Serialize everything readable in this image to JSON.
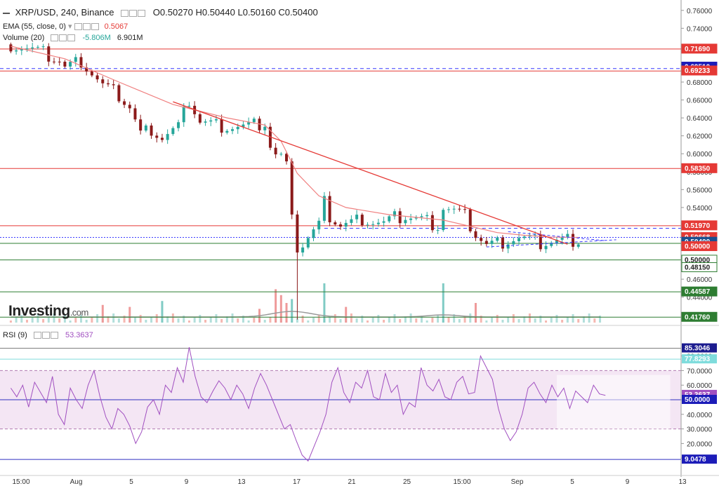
{
  "header": {
    "symbol": "XRP/USD, 240, Binance",
    "ohlc": "O0.50270  H0.50440  L0.50160  C0.50400",
    "ema_label": "EMA (55, close, 0)",
    "ema_value": "0.5067",
    "volume_label": "Volume (20)",
    "volume_value1": "-5.806M",
    "volume_value2": "6.901M",
    "rsi_label": "RSI (9)",
    "rsi_value": "53.3637",
    "watermark": "Investing",
    "watermark_suffix": ".com"
  },
  "colors": {
    "up": "#26a69a",
    "down": "#8b1a1a",
    "ema": "#f08080",
    "resistance": "#e53935",
    "support": "#2e7d32",
    "dashed": "#3a3aff",
    "rsi": "#a04fc0",
    "rsi_band": "#f4e6f4"
  },
  "chart_data": [
    {
      "type": "candlestick",
      "title": "XRP/USD, 240, Binance",
      "ylim": [
        0.41,
        0.77
      ],
      "y_ticks": [
        "0.76000",
        "0.74000",
        "0.72000",
        "0.70000",
        "0.68000",
        "0.66000",
        "0.64000",
        "0.62000",
        "0.60000",
        "0.58000",
        "0.56000",
        "0.54000",
        "0.52000",
        "0.50000",
        "0.48000",
        "0.46000",
        "0.44000",
        "0.42000"
      ],
      "x_ticks": [
        "15:00",
        "Aug",
        "5",
        "9",
        "13",
        "17",
        "21",
        "25",
        "15:00",
        "Sep",
        "5",
        "9",
        "13"
      ],
      "price_labels": [
        {
          "value": "0.71690",
          "kind": "resistance"
        },
        {
          "value": "0.69510",
          "kind": "dashed"
        },
        {
          "value": "0.69233",
          "kind": "resistance"
        },
        {
          "value": "0.58350",
          "kind": "resistance"
        },
        {
          "value": "0.51970",
          "kind": "resistance"
        },
        {
          "value": "0.50668",
          "kind": "ema"
        },
        {
          "value": "0.50400",
          "kind": "current"
        },
        {
          "value": "0.50000",
          "kind": "resistance"
        },
        {
          "value": "0.50000",
          "kind": "support"
        },
        {
          "value": "0.48150",
          "kind": "support"
        },
        {
          "value": "0.44587",
          "kind": "support"
        },
        {
          "value": "0.41760",
          "kind": "support"
        }
      ],
      "horizontal_levels": [
        0.7169,
        0.6951,
        0.69233,
        0.5835,
        0.5197,
        0.5067,
        0.504,
        0.5,
        0.4815,
        0.44587,
        0.4176
      ],
      "close_path": [
        [
          0,
          0.722
        ],
        [
          4,
          0.716
        ],
        [
          6,
          0.712
        ],
        [
          9,
          0.704
        ],
        [
          10,
          0.696
        ],
        [
          13,
          0.704
        ],
        [
          15,
          0.69
        ],
        [
          17,
          0.676
        ],
        [
          20,
          0.665
        ],
        [
          22,
          0.652
        ],
        [
          24,
          0.622
        ],
        [
          26,
          0.628
        ],
        [
          28,
          0.618
        ],
        [
          31,
          0.63
        ],
        [
          33,
          0.66
        ],
        [
          35,
          0.636
        ],
        [
          38,
          0.632
        ],
        [
          41,
          0.63
        ],
        [
          44,
          0.63
        ],
        [
          47,
          0.634
        ],
        [
          48,
          0.608
        ],
        [
          49,
          0.598
        ],
        [
          50,
          0.596
        ],
        [
          51,
          0.585
        ],
        [
          52,
          0.54
        ],
        [
          53,
          0.495
        ],
        [
          54,
          0.498
        ],
        [
          55,
          0.506
        ],
        [
          57,
          0.52
        ],
        [
          58,
          0.545
        ],
        [
          59,
          0.53
        ],
        [
          61,
          0.52
        ],
        [
          63,
          0.523
        ],
        [
          65,
          0.528
        ],
        [
          67,
          0.524
        ],
        [
          69,
          0.522
        ],
        [
          71,
          0.528
        ],
        [
          73,
          0.53
        ],
        [
          75,
          0.528
        ],
        [
          77,
          0.525
        ],
        [
          79,
          0.52
        ],
        [
          80,
          0.54
        ],
        [
          82,
          0.536
        ],
        [
          84,
          0.53
        ],
        [
          86,
          0.51
        ],
        [
          88,
          0.498
        ],
        [
          90,
          0.5
        ],
        [
          92,
          0.504
        ],
        [
          94,
          0.506
        ],
        [
          96,
          0.504
        ],
        [
          98,
          0.5
        ],
        [
          100,
          0.502
        ],
        [
          103,
          0.504
        ],
        [
          105,
          0.504
        ]
      ],
      "ema_path": [
        [
          0,
          0.72
        ],
        [
          10,
          0.706
        ],
        [
          20,
          0.68
        ],
        [
          30,
          0.655
        ],
        [
          40,
          0.64
        ],
        [
          47,
          0.632
        ],
        [
          50,
          0.614
        ],
        [
          53,
          0.578
        ],
        [
          57,
          0.553
        ],
        [
          62,
          0.54
        ],
        [
          70,
          0.532
        ],
        [
          80,
          0.526
        ],
        [
          90,
          0.512
        ],
        [
          95,
          0.509
        ],
        [
          100,
          0.507
        ],
        [
          105,
          0.5067
        ]
      ],
      "trendline": [
        [
          30,
          0.658
        ],
        [
          103,
          0.499
        ]
      ],
      "triangle_upper": [
        [
          92,
          0.513
        ],
        [
          110,
          0.503
        ]
      ],
      "triangle_lower": [
        [
          88,
          0.496
        ],
        [
          112,
          0.504
        ]
      ],
      "volume": {
        "spikes": [
          {
            "x": 49,
            "h": 0.85,
            "dir": "down"
          },
          {
            "x": 50,
            "h": 0.7,
            "dir": "down"
          },
          {
            "x": 51,
            "h": 0.5,
            "dir": "down"
          },
          {
            "x": 52,
            "h": 0.6,
            "dir": "up"
          },
          {
            "x": 58,
            "h": 1.0,
            "dir": "up"
          },
          {
            "x": 80,
            "h": 1.0,
            "dir": "up"
          },
          {
            "x": 86,
            "h": 0.5,
            "dir": "down"
          },
          {
            "x": 28,
            "h": 0.55,
            "dir": "up"
          },
          {
            "x": 22,
            "h": 0.4,
            "dir": "down"
          },
          {
            "x": 17,
            "h": 0.45,
            "dir": "down"
          },
          {
            "x": 62,
            "h": 0.4,
            "dir": "down"
          },
          {
            "x": 46,
            "h": 0.35,
            "dir": "down"
          }
        ]
      }
    },
    {
      "type": "line",
      "title": "RSI (9)",
      "ylim": [
        0,
        100
      ],
      "y_ticks": [
        "80.0000",
        "70.0000",
        "60.0000",
        "50.0000",
        "40.0000",
        "30.0000",
        "20.0000",
        "10.0000"
      ],
      "levels": [
        {
          "value": "85.3046",
          "kind": "dark"
        },
        {
          "value": "77.8293",
          "kind": "cyan"
        },
        {
          "value": "53.3637",
          "kind": "rsi"
        },
        {
          "value": "50.0000",
          "kind": "mid"
        },
        {
          "value": "9.0478",
          "kind": "low"
        }
      ],
      "band": [
        30,
        70
      ],
      "values": [
        58,
        52,
        60,
        45,
        62,
        55,
        48,
        66,
        40,
        33,
        58,
        50,
        44,
        60,
        70,
        52,
        38,
        30,
        44,
        40,
        32,
        20,
        28,
        45,
        50,
        40,
        60,
        55,
        72,
        62,
        86,
        66,
        52,
        48,
        56,
        63,
        58,
        50,
        60,
        54,
        44,
        58,
        68,
        60,
        50,
        40,
        30,
        33,
        22,
        12,
        8,
        18,
        28,
        40,
        62,
        72,
        55,
        48,
        62,
        58,
        70,
        52,
        50,
        68,
        55,
        60,
        40,
        48,
        45,
        72,
        60,
        56,
        64,
        52,
        50,
        62,
        66,
        54,
        55,
        80,
        72,
        64,
        44,
        30,
        22,
        28,
        40,
        58,
        62,
        54,
        48,
        60,
        52,
        58,
        44,
        56,
        52,
        48,
        60,
        54,
        53
      ]
    }
  ]
}
